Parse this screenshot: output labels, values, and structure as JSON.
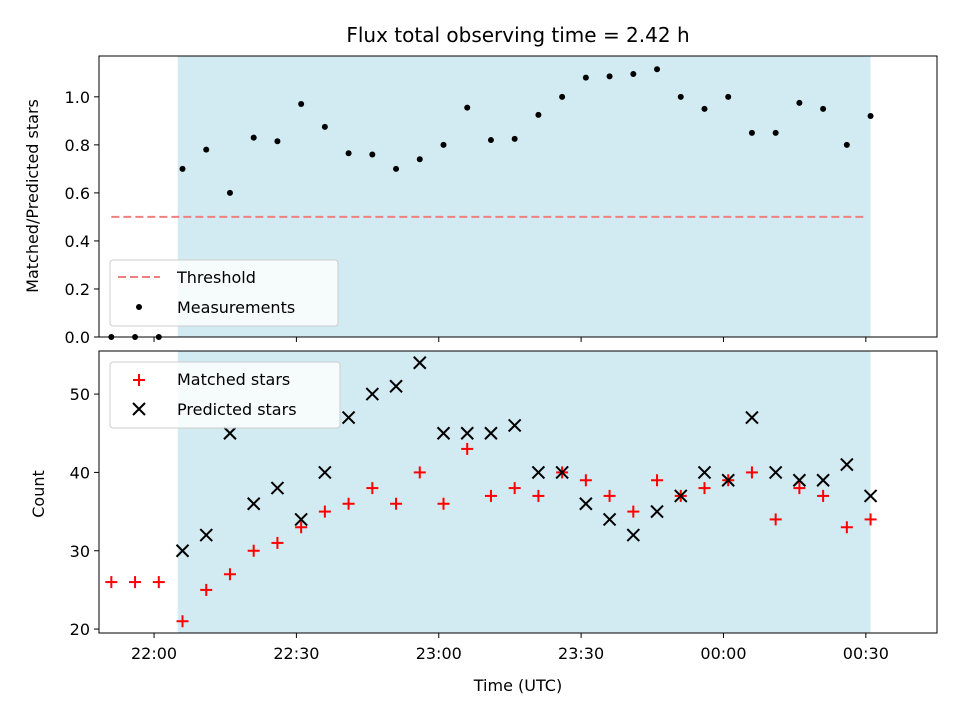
{
  "chart_data": [
    {
      "type": "scatter",
      "title": "Flux total observing time = 2.42 h",
      "xlabel": "",
      "ylabel": "Matched/Predicted stars",
      "ylim": [
        0,
        1.17
      ],
      "yticks": [
        "0.0",
        "0.2",
        "0.4",
        "0.6",
        "0.8",
        "1.0"
      ],
      "shaded_interval": [
        "22:05",
        "00:31"
      ],
      "shade_color": "#add8e6",
      "threshold": {
        "name": "Threshold",
        "y": 0.5,
        "x_start": "21:51",
        "x_end": "00:30",
        "color": "#f08080"
      },
      "series": [
        {
          "name": "Measurements",
          "color": "#000000",
          "x": [
            "21:51",
            "21:56",
            "22:01",
            "22:06",
            "22:11",
            "22:16",
            "22:21",
            "22:26",
            "22:31",
            "22:36",
            "22:41",
            "22:46",
            "22:51",
            "22:56",
            "23:01",
            "23:06",
            "23:11",
            "23:16",
            "23:21",
            "23:26",
            "23:31",
            "23:36",
            "23:41",
            "23:46",
            "23:51",
            "23:56",
            "00:01",
            "00:06",
            "00:11",
            "00:16",
            "00:21",
            "00:26",
            "00:31"
          ],
          "values": [
            0.0,
            0.0,
            0.0,
            0.7,
            0.78,
            0.6,
            0.83,
            0.815,
            0.97,
            0.875,
            0.765,
            0.76,
            0.7,
            0.74,
            0.8,
            0.955,
            0.82,
            0.825,
            0.925,
            1.0,
            1.08,
            1.085,
            1.095,
            1.115,
            1.0,
            0.95,
            1.0,
            0.85,
            0.85,
            0.975,
            0.95,
            0.8,
            0.92
          ]
        }
      ],
      "legend": [
        "Threshold",
        "Measurements"
      ],
      "legend_position": "lower-left"
    },
    {
      "type": "scatter",
      "xlabel": "Time (UTC)",
      "ylabel": "Count",
      "ylim": [
        19.5,
        55.5
      ],
      "yticks": [
        "20",
        "30",
        "40",
        "50"
      ],
      "xticks": [
        "22:00",
        "22:30",
        "23:00",
        "23:30",
        "00:00",
        "00:30"
      ],
      "shaded_interval": [
        "22:05",
        "00:31"
      ],
      "shade_color": "#add8e6",
      "series": [
        {
          "name": "Matched stars",
          "marker": "plus",
          "color": "#ff0000",
          "x": [
            "21:51",
            "21:56",
            "22:01",
            "22:06",
            "22:11",
            "22:16",
            "22:21",
            "22:26",
            "22:31",
            "22:36",
            "22:41",
            "22:46",
            "22:51",
            "22:56",
            "23:01",
            "23:06",
            "23:11",
            "23:16",
            "23:21",
            "23:26",
            "23:31",
            "23:36",
            "23:41",
            "23:46",
            "23:51",
            "23:56",
            "00:01",
            "00:06",
            "00:11",
            "00:16",
            "00:21",
            "00:26",
            "00:31"
          ],
          "values": [
            26,
            26,
            26,
            21,
            25,
            27,
            30,
            31,
            33,
            35,
            36,
            38,
            36,
            40,
            36,
            43,
            37,
            38,
            37,
            40,
            39,
            37,
            35,
            39,
            37,
            38,
            39,
            40,
            34,
            38,
            37,
            33,
            34
          ]
        },
        {
          "name": "Predicted stars",
          "marker": "x",
          "color": "#000000",
          "x": [
            "22:06",
            "22:11",
            "22:16",
            "22:21",
            "22:26",
            "22:31",
            "22:36",
            "22:41",
            "22:46",
            "22:51",
            "22:56",
            "23:01",
            "23:06",
            "23:11",
            "23:16",
            "23:21",
            "23:26",
            "23:31",
            "23:36",
            "23:41",
            "23:46",
            "23:51",
            "23:56",
            "00:01",
            "00:06",
            "00:11",
            "00:16",
            "00:21",
            "00:26",
            "00:31"
          ],
          "values": [
            30,
            32,
            45,
            36,
            38,
            34,
            40,
            47,
            50,
            51,
            54,
            45,
            45,
            45,
            46,
            40,
            40,
            36,
            34,
            32,
            35,
            37,
            40,
            39,
            47,
            40,
            39,
            39,
            41,
            37
          ]
        }
      ],
      "legend": [
        "Matched stars",
        "Predicted stars"
      ],
      "legend_position": "upper-left"
    }
  ]
}
